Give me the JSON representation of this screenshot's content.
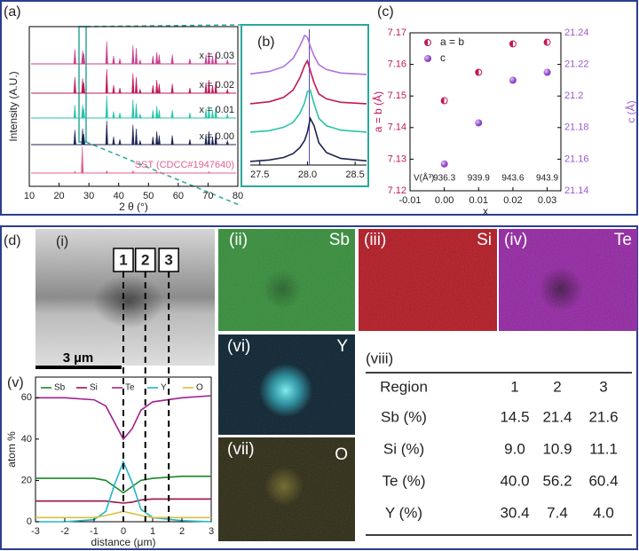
{
  "panel_labels": {
    "a": "(a)",
    "b": "(b)",
    "c": "(c)",
    "d": "(d)"
  },
  "chart_data": [
    {
      "type": "stem",
      "xlabel": "2 θ (°)",
      "ylabel": "Intensity (A.U.)",
      "xlim": [
        10,
        80
      ],
      "xticks": [
        10,
        20,
        30,
        40,
        50,
        60,
        70,
        80
      ],
      "series": [
        {
          "name": "x = 0.03",
          "color": "#c8408e",
          "x": [
            25.3,
            27.9,
            28.3,
            36.0,
            38.3,
            40.4,
            44.8,
            45.9,
            47.2,
            51.5,
            52.8,
            53.6,
            58.0,
            63.9,
            69.3,
            70.3,
            71.5,
            72.6,
            76.5
          ],
          "values": [
            0.55,
            0.5,
            0.4,
            0.85,
            0.3,
            0.2,
            0.7,
            0.6,
            0.15,
            0.3,
            0.45,
            0.35,
            0.35,
            0.2,
            0.35,
            0.45,
            0.3,
            0.4,
            0.15
          ]
        },
        {
          "name": "x = 0.02",
          "color": "#c0185a",
          "x": [
            25.3,
            27.9,
            28.3,
            36.0,
            38.3,
            40.4,
            44.8,
            45.9,
            47.2,
            51.5,
            52.8,
            53.6,
            58.0,
            63.9,
            69.3,
            70.3,
            71.5,
            72.6,
            76.5
          ],
          "values": [
            0.6,
            0.55,
            0.4,
            0.9,
            0.3,
            0.2,
            0.75,
            0.6,
            0.15,
            0.3,
            0.5,
            0.35,
            0.35,
            0.2,
            0.4,
            0.5,
            0.3,
            0.45,
            0.15
          ]
        },
        {
          "name": "x = 0.01",
          "color": "#27c4a8",
          "x": [
            25.3,
            27.9,
            28.3,
            36.0,
            38.3,
            40.4,
            44.8,
            45.9,
            47.2,
            51.5,
            52.8,
            53.6,
            58.0,
            63.9,
            69.3,
            70.3,
            71.5,
            72.6,
            76.5
          ],
          "values": [
            0.5,
            0.5,
            0.35,
            0.85,
            0.25,
            0.2,
            0.7,
            0.55,
            0.15,
            0.3,
            0.45,
            0.3,
            0.3,
            0.2,
            0.35,
            0.45,
            0.3,
            0.4,
            0.15
          ]
        },
        {
          "name": "x = 0.00",
          "color": "#1d2450",
          "x": [
            25.3,
            27.9,
            28.3,
            36.0,
            38.3,
            40.4,
            44.8,
            45.9,
            47.2,
            51.5,
            52.8,
            53.6,
            58.0,
            63.9,
            69.3,
            70.3,
            71.5,
            72.6,
            76.5
          ],
          "values": [
            0.55,
            0.6,
            0.4,
            0.9,
            0.3,
            0.2,
            0.75,
            0.6,
            0.15,
            0.3,
            0.5,
            0.35,
            0.35,
            0.2,
            0.4,
            0.5,
            0.3,
            0.45,
            0.15
          ]
        },
        {
          "name": "SST (CDCC#1947640)",
          "color": "#e06090",
          "x": [
            25.3,
            27.8,
            36.0,
            44.8,
            52.8,
            70.3
          ],
          "values": [
            0.06,
            1.0,
            0.08,
            0.08,
            0.05,
            0.05
          ]
        }
      ]
    },
    {
      "type": "line",
      "xlim": [
        27.4,
        28.62
      ],
      "xticks": [
        27.5,
        {
          "value": 28,
          "label": "28.0"
        },
        28.5
      ],
      "ref_x": 28.02,
      "ref_color": "#5b3fb0",
      "x": [
        27.4,
        27.6,
        27.75,
        27.85,
        27.92,
        27.97,
        28.0,
        28.03,
        28.07,
        28.12,
        28.2,
        28.35,
        28.62
      ],
      "series": [
        {
          "color": "#b070e0",
          "values": [
            0.03,
            0.08,
            0.18,
            0.35,
            0.6,
            0.82,
            0.78,
            0.6,
            0.4,
            0.22,
            0.12,
            0.05,
            0.02
          ]
        },
        {
          "color": "#c0185a",
          "values": [
            0.02,
            0.06,
            0.15,
            0.3,
            0.55,
            0.8,
            0.9,
            0.7,
            0.45,
            0.22,
            0.12,
            0.05,
            0.02
          ]
        },
        {
          "color": "#27c4a8",
          "values": [
            0.02,
            0.05,
            0.12,
            0.22,
            0.4,
            0.62,
            0.85,
            0.88,
            0.6,
            0.3,
            0.15,
            0.06,
            0.02
          ]
        },
        {
          "color": "#1d2450",
          "values": [
            0.02,
            0.05,
            0.1,
            0.18,
            0.3,
            0.45,
            0.62,
            0.9,
            0.75,
            0.4,
            0.2,
            0.08,
            0.03
          ]
        }
      ]
    },
    {
      "type": "scatter",
      "xlabel": "x",
      "ylabel": "a = b (Å)",
      "y2label": "c (Å)",
      "x": [
        0,
        0.01,
        0.02,
        0.03
      ],
      "xlim": [
        -0.01,
        0.034
      ],
      "xticks": [
        -0.01,
        {
          "value": 0,
          "label": "0.00"
        },
        0.01,
        0.02,
        0.03
      ],
      "ylim": [
        7.12,
        7.17
      ],
      "yticks": [
        7.12,
        7.13,
        7.14,
        7.15,
        7.16,
        7.17
      ],
      "y2lim": [
        21.14,
        21.24
      ],
      "y2ticks": [
        21.14,
        21.16,
        21.18,
        21.2,
        21.22,
        21.24
      ],
      "series": [
        {
          "name": "a = b",
          "color": "#c0185a",
          "values": [
            7.1485,
            7.1575,
            7.1665,
            7.167
          ]
        },
        {
          "name": "c",
          "color": "#9b59d0",
          "axis": "y2",
          "values": [
            21.157,
            21.183,
            21.21,
            21.215
          ]
        }
      ],
      "annotation": {
        "label": "V(Å³)",
        "values": [
          936.3,
          939.9,
          943.6,
          943.9
        ]
      }
    },
    {
      "type": "line",
      "xlabel": "distance (μm)",
      "ylabel": "atom %",
      "x": [
        -3,
        -2,
        -1,
        -0.6,
        -0.3,
        0,
        0.3,
        0.6,
        1,
        2,
        3
      ],
      "xlim": [
        -3,
        3
      ],
      "xticks": [
        -3,
        -2,
        -1,
        0,
        1,
        2,
        3
      ],
      "ylim": [
        0,
        70
      ],
      "yticks": [
        0,
        20,
        40,
        60
      ],
      "series": [
        {
          "name": "Sb",
          "color": "#1a8a2a",
          "values": [
            21,
            21,
            21,
            20,
            17,
            14,
            17,
            20,
            21,
            22,
            22
          ]
        },
        {
          "name": "Si",
          "color": "#a0104a",
          "values": [
            10,
            10,
            10,
            10,
            9.5,
            9,
            9.5,
            10.5,
            11,
            11,
            11
          ]
        },
        {
          "name": "Te",
          "color": "#a02090",
          "values": [
            60,
            60,
            59,
            56,
            48,
            40,
            45,
            54,
            58,
            60,
            61
          ]
        },
        {
          "name": "Y",
          "color": "#20b8c8",
          "values": [
            0,
            0,
            1,
            5,
            18,
            29,
            19,
            6,
            2,
            0.5,
            0
          ]
        },
        {
          "name": "O",
          "color": "#d8c040",
          "values": [
            2,
            2,
            2,
            3,
            4,
            5,
            4,
            3,
            2,
            2,
            2
          ]
        }
      ],
      "markers": [
        {
          "label": "1",
          "x": 0
        },
        {
          "label": "2",
          "x": 0.75
        },
        {
          "label": "3",
          "x": 1.55
        }
      ]
    }
  ],
  "images": {
    "i": {
      "label": "(i)",
      "scale_bar": "3 µm"
    },
    "v": {
      "label": "(v)"
    },
    "ii": {
      "label": "(ii)",
      "element": "Sb"
    },
    "iii": {
      "label": "(iii)",
      "element": "Si"
    },
    "iv": {
      "label": "(iv)",
      "element": "Te"
    },
    "vi": {
      "label": "(vi)",
      "element": "Y"
    },
    "vii": {
      "label": "(vii)",
      "element": "O"
    }
  },
  "table": {
    "label": "(viii)",
    "header": [
      "Region",
      "1",
      "2",
      "3"
    ],
    "rows": [
      [
        "Sb (%)",
        "14.5",
        "21.4",
        "21.6"
      ],
      [
        "Si (%)",
        "9.0",
        "10.9",
        "11.1"
      ],
      [
        "Te (%)",
        "40.0",
        "56.2",
        "60.4"
      ],
      [
        "Y (%)",
        "30.4",
        "7.4",
        "4.0"
      ]
    ]
  }
}
